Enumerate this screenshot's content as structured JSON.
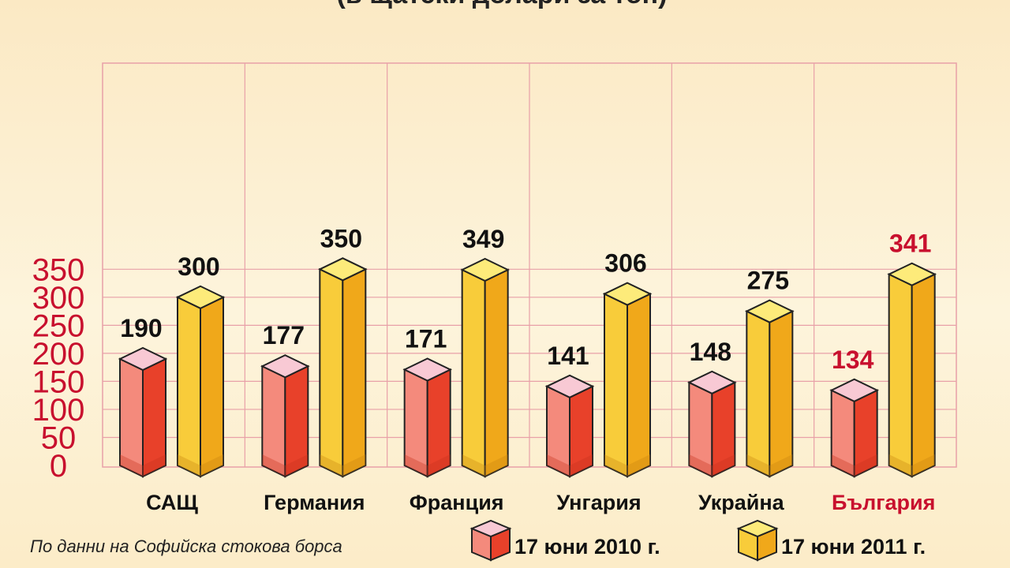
{
  "subtitle": "(в щатски долари за тон)",
  "source": "По данни на Софийска стокова борса",
  "colors": {
    "series_2010_front": "#e8412a",
    "series_2010_light": "#f48a7c",
    "series_2010_top": "#f8c9d4",
    "series_2011_front": "#f0a81a",
    "series_2011_light": "#f8cc3a",
    "series_2011_top": "#fdeb7a",
    "highlight": "#c8102e",
    "grid": "#e8a0a8"
  },
  "chart_data": {
    "type": "bar",
    "categories": [
      "САЩ",
      "Германия",
      "Франция",
      "Унгария",
      "Украйна",
      "България"
    ],
    "highlight_category": "България",
    "series": [
      {
        "name": "17 юни 2010 г.",
        "values": [
          190,
          177,
          171,
          141,
          148,
          134
        ]
      },
      {
        "name": "17 юни 2011 г.",
        "values": [
          300,
          350,
          349,
          306,
          275,
          341
        ]
      }
    ],
    "yticks": [
      "0",
      "50",
      "100",
      "150",
      "200",
      "250",
      "300",
      "350"
    ],
    "ylim": [
      0,
      370
    ],
    "grid": true,
    "legend_position": "bottom-right"
  }
}
